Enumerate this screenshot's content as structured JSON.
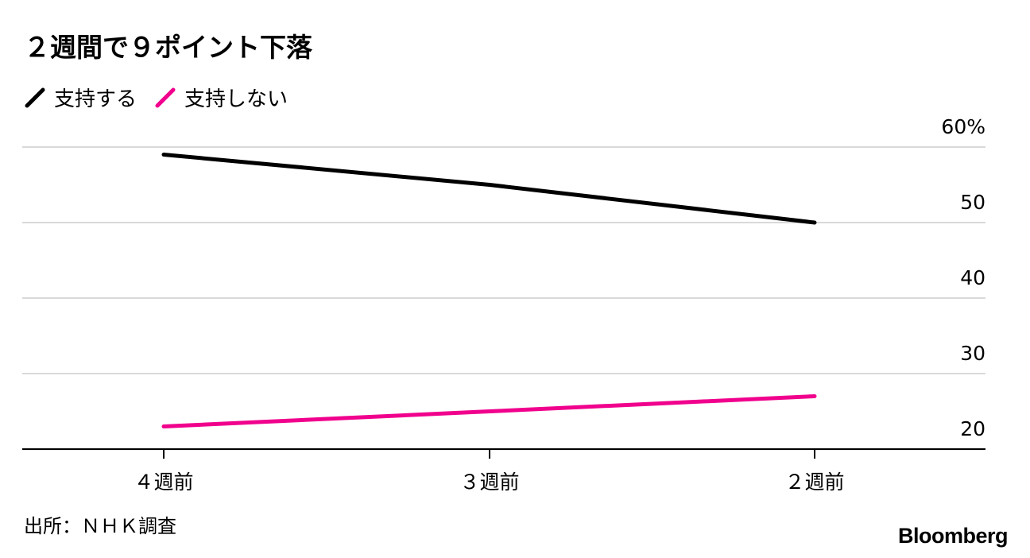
{
  "chart_data": {
    "type": "line",
    "title": "２週間で９ポイント下落",
    "categories": [
      "４週前",
      "３週前",
      "２週前"
    ],
    "series": [
      {
        "name": "支持する",
        "color": "#000000",
        "values": [
          59,
          55,
          50
        ]
      },
      {
        "name": "支持しない",
        "color": "#f0008c",
        "values": [
          23,
          25,
          27
        ]
      }
    ],
    "y_ticks": [
      {
        "value": 60,
        "label": "60%"
      },
      {
        "value": 50,
        "label": "50"
      },
      {
        "value": 40,
        "label": "40"
      },
      {
        "value": 30,
        "label": "30"
      },
      {
        "value": 20,
        "label": "20"
      }
    ],
    "ylim": [
      20,
      60
    ],
    "y_axis_side": "right",
    "grid": true,
    "legend_position": "top-left"
  },
  "source": "出所：ＮＨＫ調査",
  "brand": "Bloomberg"
}
